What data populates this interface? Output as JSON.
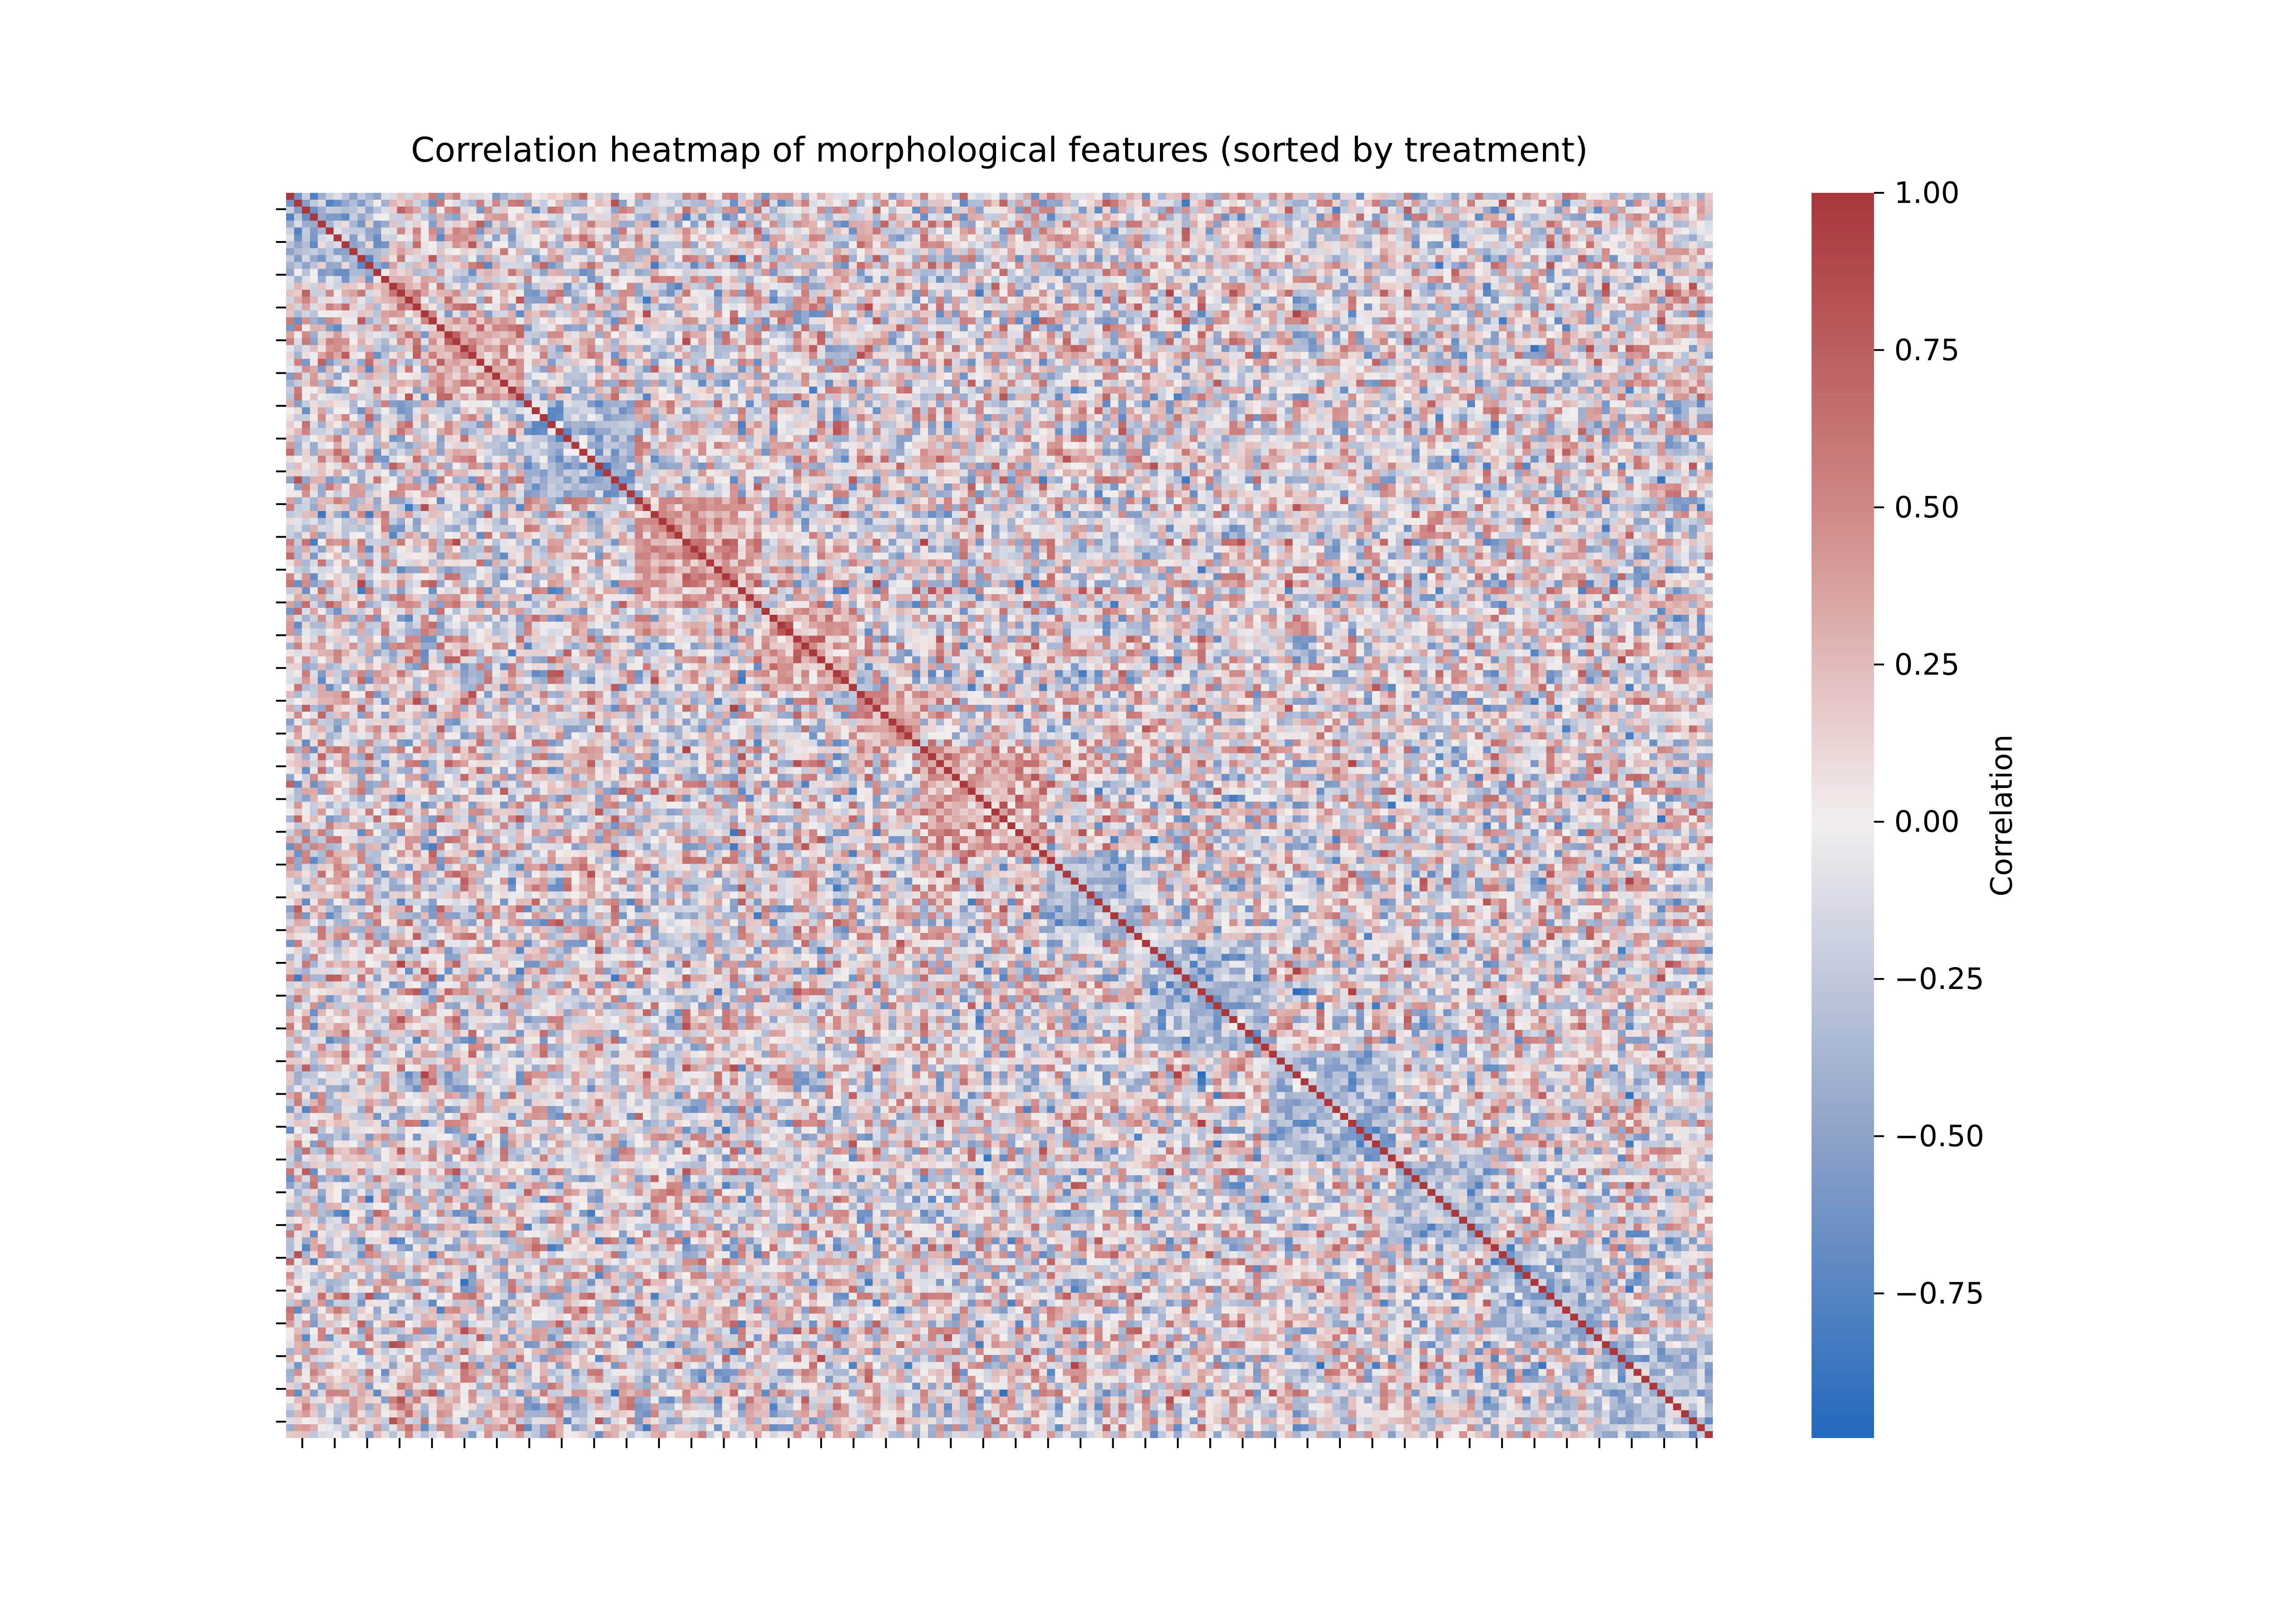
{
  "chart_data": {
    "type": "heatmap",
    "title": "Correlation heatmap of morphological features (sorted by treatment)",
    "xlabel": "",
    "ylabel": "",
    "n_features": 180,
    "x_tick_count": 44,
    "y_tick_count": 38,
    "tick_labels_visible": false,
    "diagonal_value": 1.0,
    "value_range": [
      -0.98,
      1.0
    ],
    "colormap": {
      "name": "vlag",
      "stops": [
        {
          "value": -0.98,
          "color": "#2369bd"
        },
        {
          "value": -0.5,
          "color": "#8ea2c8"
        },
        {
          "value": 0.0,
          "color": "#f3efef"
        },
        {
          "value": 0.5,
          "color": "#cf8886"
        },
        {
          "value": 1.0,
          "color": "#a9373b"
        }
      ]
    },
    "colorbar": {
      "label": "Correlation",
      "ticks": [
        {
          "value": 1.0,
          "label": "1.00"
        },
        {
          "value": 0.75,
          "label": "0.75"
        },
        {
          "value": 0.5,
          "label": "0.50"
        },
        {
          "value": 0.25,
          "label": "0.25"
        },
        {
          "value": 0.0,
          "label": "0.00"
        },
        {
          "value": -0.25,
          "label": "−0.25"
        },
        {
          "value": -0.5,
          "label": "−0.50"
        },
        {
          "value": -0.75,
          "label": "−0.75"
        }
      ]
    },
    "block_structure": [
      {
        "start": 0,
        "end": 12
      },
      {
        "start": 12,
        "end": 18
      },
      {
        "start": 18,
        "end": 30
      },
      {
        "start": 30,
        "end": 44
      },
      {
        "start": 44,
        "end": 60
      },
      {
        "start": 60,
        "end": 72
      },
      {
        "start": 72,
        "end": 80
      },
      {
        "start": 80,
        "end": 96
      },
      {
        "start": 96,
        "end": 108
      },
      {
        "start": 108,
        "end": 124
      },
      {
        "start": 124,
        "end": 140
      },
      {
        "start": 140,
        "end": 152
      },
      {
        "start": 152,
        "end": 166
      },
      {
        "start": 166,
        "end": 180
      }
    ]
  }
}
